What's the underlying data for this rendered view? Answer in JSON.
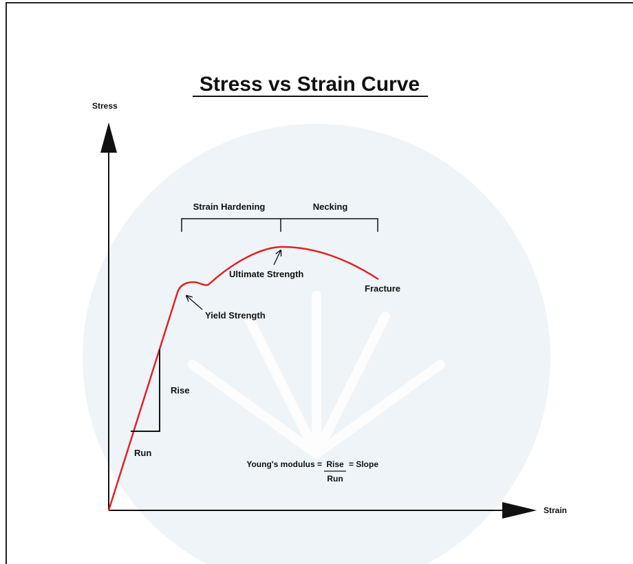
{
  "title": "Stress vs Strain Curve",
  "axes": {
    "y_label": "Stress",
    "x_label": "Strain"
  },
  "regions": {
    "strain_hardening": "Strain Hardening",
    "necking": "Necking"
  },
  "points": {
    "ultimate": "Ultimate Strength",
    "yield": "Yield Strength",
    "fracture": "Fracture"
  },
  "slope": {
    "rise": "Rise",
    "run": "Run"
  },
  "formula": {
    "lhs": "Young's modulus =",
    "numerator": "Rise",
    "rhs": "= Slope",
    "denominator": "Run"
  }
}
